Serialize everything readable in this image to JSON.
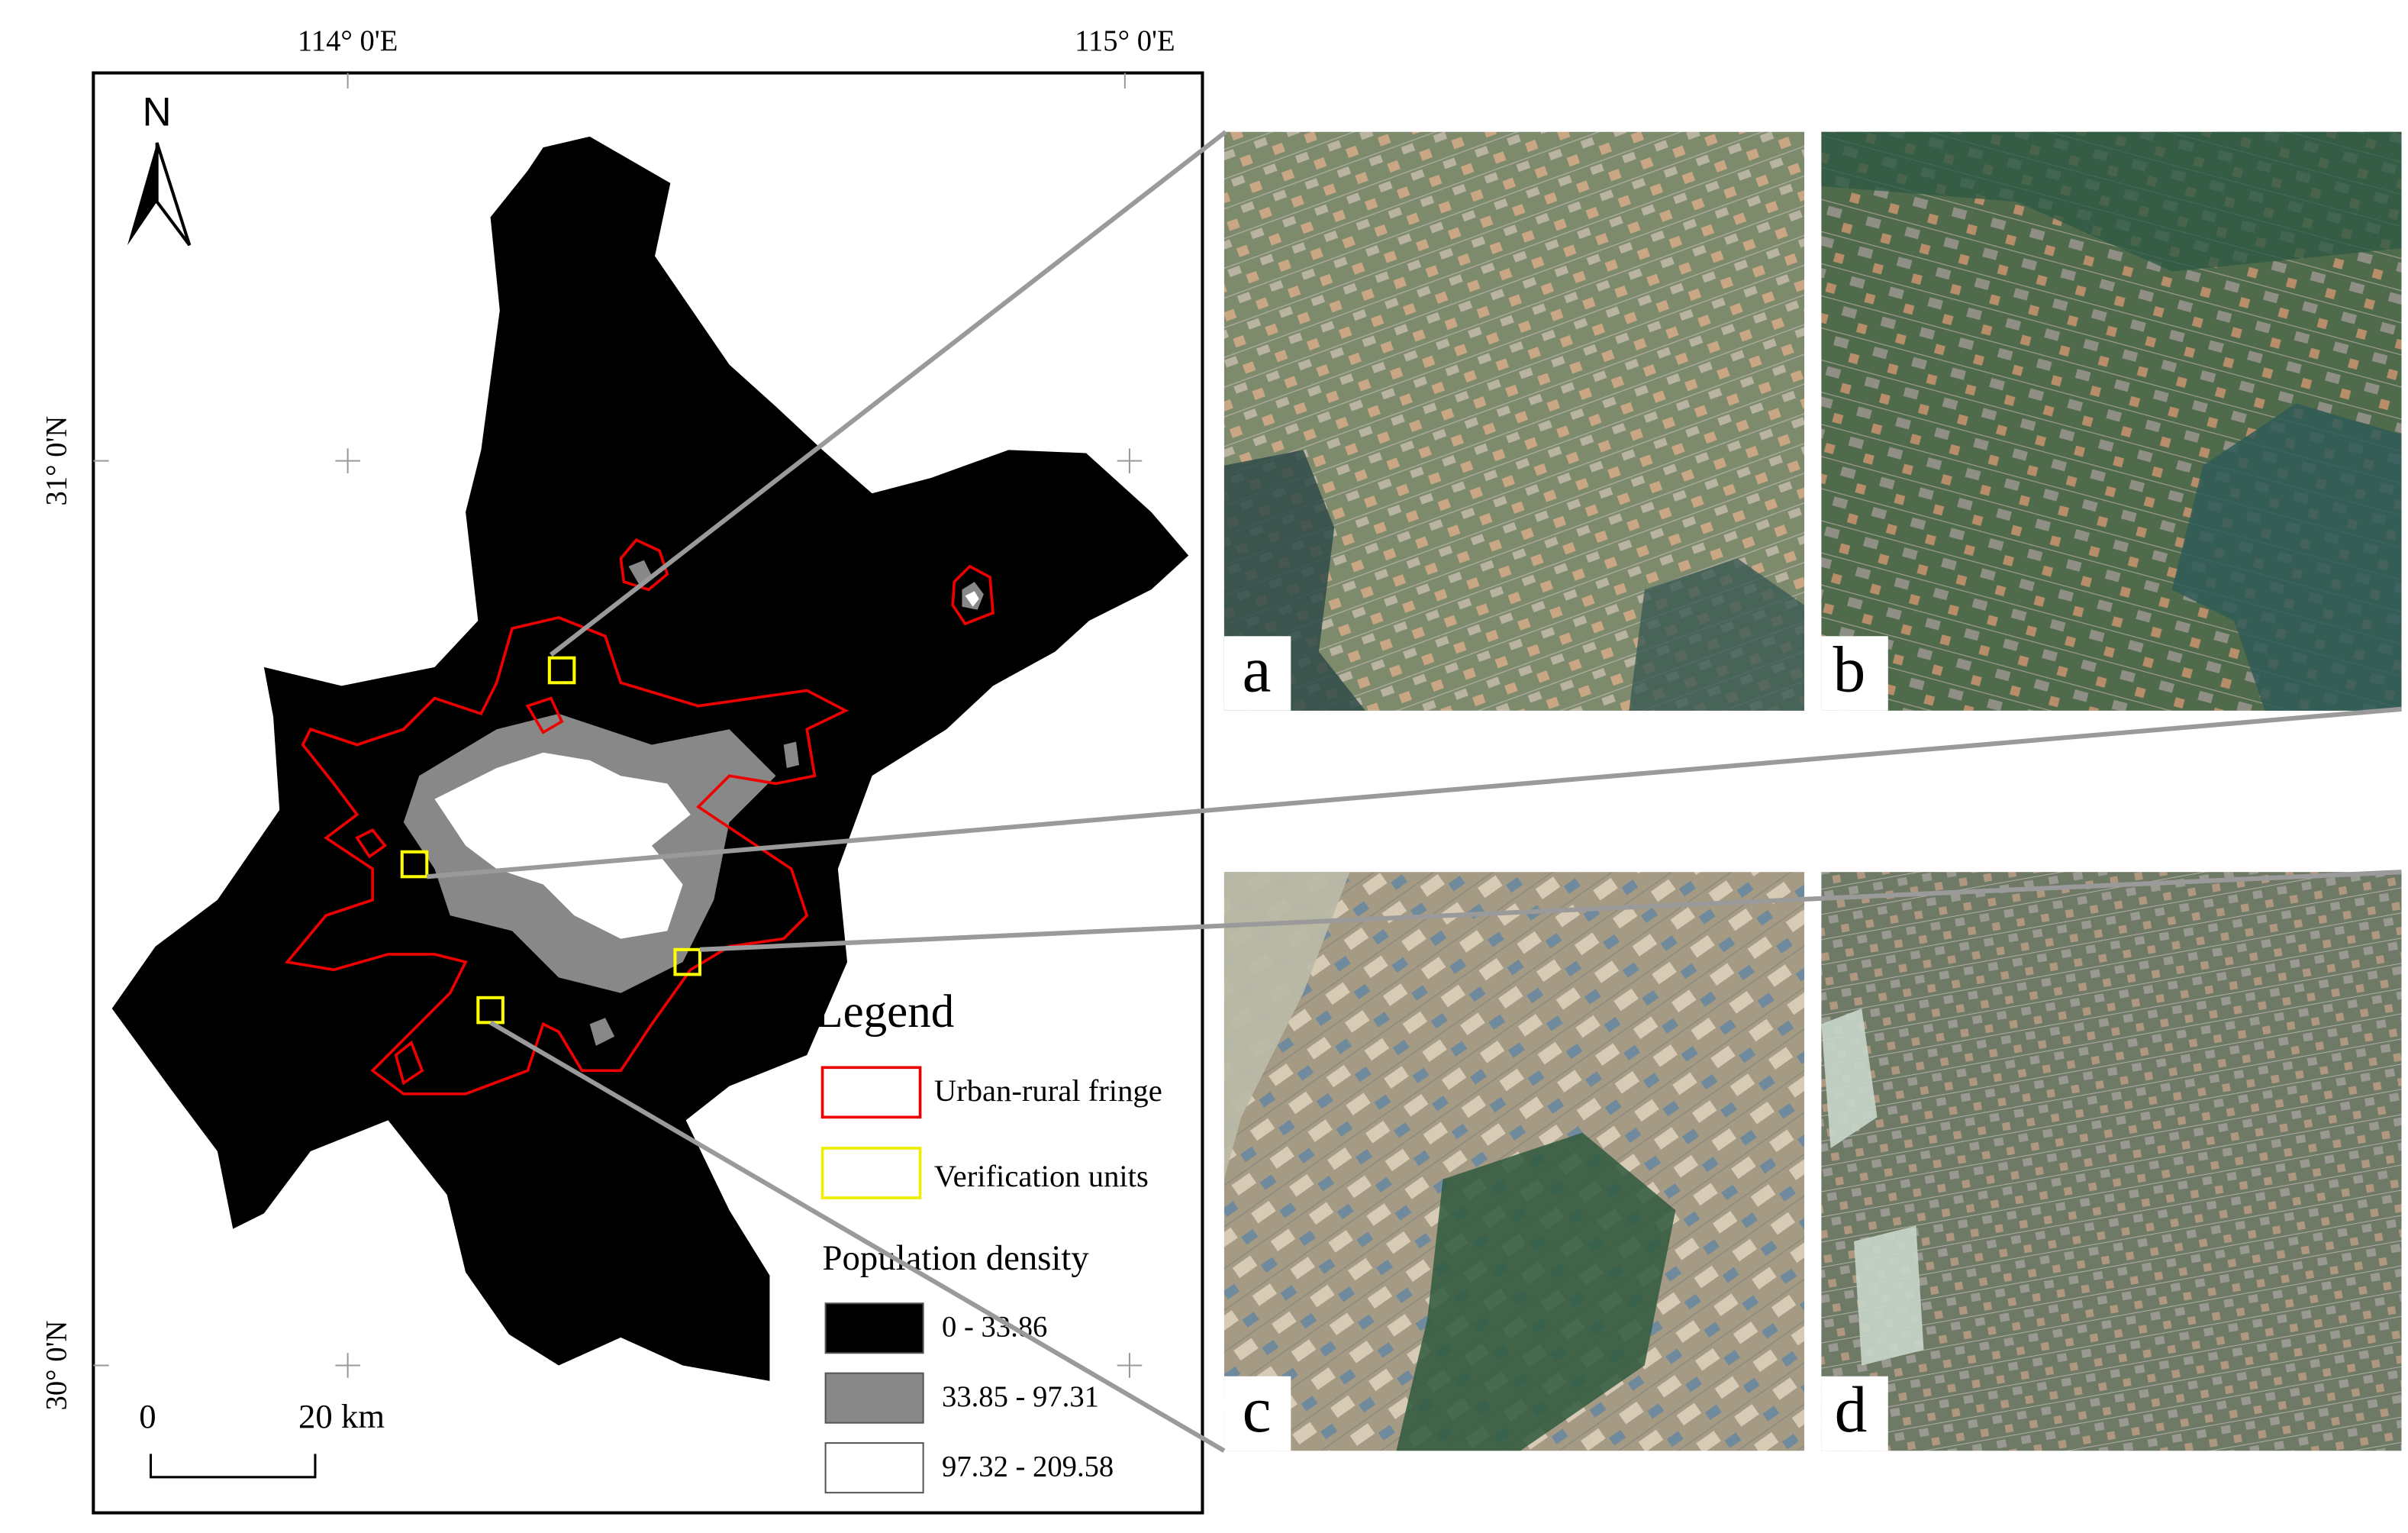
{
  "coordinates": {
    "lon": [
      "114° 0'E",
      "115° 0'E"
    ],
    "lat": [
      "31° 0'N",
      "30° 0'N"
    ]
  },
  "north": "N",
  "scale_bar": {
    "start": "0",
    "end": "20 km"
  },
  "legend": {
    "title": "Legend",
    "items": [
      "Urban-rural fringe",
      "Verification units"
    ],
    "density_title": "Population density",
    "classes": [
      "0 - 33.86",
      "33.85 - 97.31",
      "97.32 - 209.58"
    ]
  },
  "panels": [
    "a",
    "b",
    "c",
    "d"
  ]
}
